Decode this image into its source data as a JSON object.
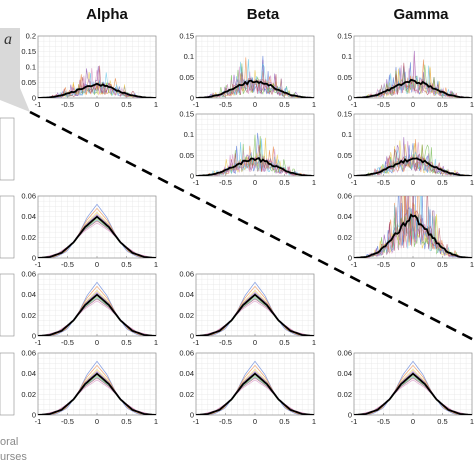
{
  "figure": {
    "column_headers": [
      "Alpha",
      "Beta",
      "Gamma"
    ],
    "corner_glyph": "a",
    "side_note_lines": [
      "oral",
      "urses"
    ]
  },
  "colors": {
    "mean_line": "#000000",
    "gridline": "#e6e6e6",
    "axis": "#8c8c8c",
    "divider": "#000000",
    "trace_palette": [
      "#4a6fd4",
      "#e8803a",
      "#e8c340",
      "#8a4fb0",
      "#6fb84a",
      "#5fc3e6",
      "#b04a5a",
      "#d28ac0"
    ]
  },
  "chart_data": [
    {
      "type": "line",
      "panel": "row1-alpha",
      "style": "noisy-histogram",
      "x_range": [
        -1,
        1
      ],
      "xticks": [
        "-1",
        "-0.5",
        "0",
        "0.5",
        "1"
      ],
      "ylim": [
        0,
        0.2
      ],
      "yticks": [
        "0",
        "0.05",
        "0.1",
        "0.15",
        "0.2"
      ],
      "series": [
        {
          "values_x": [
            -1,
            -0.8,
            -0.6,
            -0.4,
            -0.2,
            0,
            0.2,
            0.4,
            0.6,
            0.8,
            1
          ],
          "values_y": [
            0,
            0.002,
            0.008,
            0.02,
            0.036,
            0.045,
            0.036,
            0.02,
            0.008,
            0.002,
            0
          ]
        }
      ]
    },
    {
      "type": "line",
      "panel": "row1-beta",
      "style": "noisy-histogram",
      "x_range": [
        -1,
        1
      ],
      "xticks": [
        "-1",
        "-0.5",
        "0",
        "0.5",
        "1"
      ],
      "ylim": [
        0,
        0.15
      ],
      "yticks": [
        "0",
        "0.05",
        "0.1",
        "0.15"
      ],
      "series": [
        {
          "values_x": [
            -1,
            -0.8,
            -0.6,
            -0.4,
            -0.2,
            0,
            0.2,
            0.4,
            0.6,
            0.8,
            1
          ],
          "values_y": [
            0,
            0.002,
            0.008,
            0.02,
            0.034,
            0.042,
            0.034,
            0.02,
            0.008,
            0.002,
            0
          ]
        }
      ]
    },
    {
      "type": "line",
      "panel": "row1-gamma",
      "style": "noisy-histogram",
      "x_range": [
        -1,
        1
      ],
      "xticks": [
        "-1",
        "-0.5",
        "0",
        "0.5",
        "1"
      ],
      "ylim": [
        0,
        0.15
      ],
      "yticks": [
        "0",
        "0.05",
        "0.1",
        "0.15"
      ],
      "series": [
        {
          "values_x": [
            -1,
            -0.8,
            -0.6,
            -0.4,
            -0.2,
            0,
            0.2,
            0.4,
            0.6,
            0.8,
            1
          ],
          "values_y": [
            0,
            0.002,
            0.008,
            0.02,
            0.034,
            0.042,
            0.034,
            0.02,
            0.008,
            0.002,
            0
          ]
        }
      ]
    },
    {
      "type": "line",
      "panel": "row2-beta",
      "style": "noisy-histogram",
      "x_range": [
        -1,
        1
      ],
      "xticks": [
        "-1",
        "-0.5",
        "0",
        "0.5",
        "1"
      ],
      "ylim": [
        0,
        0.15
      ],
      "yticks": [
        "0",
        "0.05",
        "0.1",
        "0.15"
      ],
      "series": [
        {
          "values_x": [
            -1,
            -0.8,
            -0.6,
            -0.4,
            -0.2,
            0,
            0.2,
            0.4,
            0.6,
            0.8,
            1
          ],
          "values_y": [
            0,
            0.002,
            0.008,
            0.02,
            0.034,
            0.042,
            0.034,
            0.02,
            0.008,
            0.002,
            0
          ]
        }
      ]
    },
    {
      "type": "line",
      "panel": "row2-gamma",
      "style": "noisy-histogram",
      "x_range": [
        -1,
        1
      ],
      "xticks": [
        "-1",
        "-0.5",
        "0",
        "0.5",
        "1"
      ],
      "ylim": [
        0,
        0.15
      ],
      "yticks": [
        "0",
        "0.05",
        "0.1",
        "0.15"
      ],
      "series": [
        {
          "values_x": [
            -1,
            -0.8,
            -0.6,
            -0.4,
            -0.2,
            0,
            0.2,
            0.4,
            0.6,
            0.8,
            1
          ],
          "values_y": [
            0,
            0.002,
            0.008,
            0.02,
            0.034,
            0.042,
            0.034,
            0.02,
            0.008,
            0.002,
            0
          ]
        }
      ]
    },
    {
      "type": "line",
      "panel": "row3-alpha",
      "style": "smooth",
      "x_range": [
        -1,
        1
      ],
      "xticks": [
        "-1",
        "-0.5",
        "0",
        "0.5",
        "1"
      ],
      "ylim": [
        0,
        0.06
      ],
      "yticks": [
        "0",
        "0.02",
        "0.04",
        "0.06"
      ],
      "series": [
        {
          "values_x": [
            -1,
            -0.8,
            -0.6,
            -0.4,
            -0.2,
            0,
            0.2,
            0.4,
            0.6,
            0.8,
            1
          ],
          "values_y": [
            0,
            0.001,
            0.005,
            0.015,
            0.03,
            0.04,
            0.03,
            0.015,
            0.005,
            0.001,
            0
          ]
        }
      ]
    },
    {
      "type": "line",
      "panel": "row3-gamma",
      "style": "noisy-histogram",
      "x_range": [
        -1,
        1
      ],
      "xticks": [
        "-1",
        "-0.5",
        "0",
        "0.5",
        "1"
      ],
      "ylim": [
        0,
        0.06
      ],
      "yticks": [
        "0",
        "0.02",
        "0.04",
        "0.06"
      ],
      "series": [
        {
          "values_x": [
            -1,
            -0.8,
            -0.6,
            -0.4,
            -0.2,
            0,
            0.2,
            0.4,
            0.6,
            0.8,
            1
          ],
          "values_y": [
            0,
            0.001,
            0.005,
            0.015,
            0.03,
            0.04,
            0.03,
            0.015,
            0.005,
            0.001,
            0
          ]
        }
      ]
    },
    {
      "type": "line",
      "panel": "row4-alpha",
      "style": "smooth",
      "x_range": [
        -1,
        1
      ],
      "xticks": [
        "-1",
        "-0.5",
        "0",
        "0.5",
        "1"
      ],
      "ylim": [
        0,
        0.06
      ],
      "yticks": [
        "0",
        "0.02",
        "0.04",
        "0.06"
      ],
      "series": [
        {
          "values_x": [
            -1,
            -0.8,
            -0.6,
            -0.4,
            -0.2,
            0,
            0.2,
            0.4,
            0.6,
            0.8,
            1
          ],
          "values_y": [
            0,
            0.001,
            0.005,
            0.015,
            0.03,
            0.04,
            0.03,
            0.015,
            0.005,
            0.001,
            0
          ]
        }
      ]
    },
    {
      "type": "line",
      "panel": "row4-beta",
      "style": "smooth",
      "x_range": [
        -1,
        1
      ],
      "xticks": [
        "-1",
        "-0.5",
        "0",
        "0.5",
        "1"
      ],
      "ylim": [
        0,
        0.06
      ],
      "yticks": [
        "0",
        "0.02",
        "0.04",
        "0.06"
      ],
      "series": [
        {
          "values_x": [
            -1,
            -0.8,
            -0.6,
            -0.4,
            -0.2,
            0,
            0.2,
            0.4,
            0.6,
            0.8,
            1
          ],
          "values_y": [
            0,
            0.001,
            0.005,
            0.015,
            0.03,
            0.04,
            0.03,
            0.015,
            0.005,
            0.001,
            0
          ]
        }
      ]
    },
    {
      "type": "line",
      "panel": "row5-alpha",
      "style": "smooth",
      "x_range": [
        -1,
        1
      ],
      "xticks": [
        "-1",
        "-0.5",
        "0",
        "0.5",
        "1"
      ],
      "ylim": [
        0,
        0.06
      ],
      "yticks": [
        "0",
        "0.02",
        "0.04",
        "0.06"
      ],
      "series": [
        {
          "values_x": [
            -1,
            -0.8,
            -0.6,
            -0.4,
            -0.2,
            0,
            0.2,
            0.4,
            0.6,
            0.8,
            1
          ],
          "values_y": [
            0,
            0.001,
            0.005,
            0.015,
            0.03,
            0.04,
            0.03,
            0.015,
            0.005,
            0.001,
            0
          ]
        }
      ]
    },
    {
      "type": "line",
      "panel": "row5-beta",
      "style": "smooth",
      "x_range": [
        -1,
        1
      ],
      "xticks": [
        "-1",
        "-0.5",
        "0",
        "0.5",
        "1"
      ],
      "ylim": [
        0,
        0.06
      ],
      "yticks": [
        "0",
        "0.02",
        "0.04",
        "0.06"
      ],
      "series": [
        {
          "values_x": [
            -1,
            -0.8,
            -0.6,
            -0.4,
            -0.2,
            0,
            0.2,
            0.4,
            0.6,
            0.8,
            1
          ],
          "values_y": [
            0,
            0.001,
            0.005,
            0.015,
            0.03,
            0.04,
            0.03,
            0.015,
            0.005,
            0.001,
            0
          ]
        }
      ]
    },
    {
      "type": "line",
      "panel": "row5-gamma",
      "style": "smooth",
      "x_range": [
        -1,
        1
      ],
      "xticks": [
        "-1",
        "-0.5",
        "0",
        "0.5",
        "1"
      ],
      "ylim": [
        0,
        0.06
      ],
      "yticks": [
        "0",
        "0.02",
        "0.04",
        "0.06"
      ],
      "series": [
        {
          "values_x": [
            -1,
            -0.8,
            -0.6,
            -0.4,
            -0.2,
            0,
            0.2,
            0.4,
            0.6,
            0.8,
            1
          ],
          "values_y": [
            0,
            0.001,
            0.005,
            0.015,
            0.03,
            0.04,
            0.03,
            0.015,
            0.005,
            0.001,
            0
          ]
        }
      ]
    }
  ]
}
